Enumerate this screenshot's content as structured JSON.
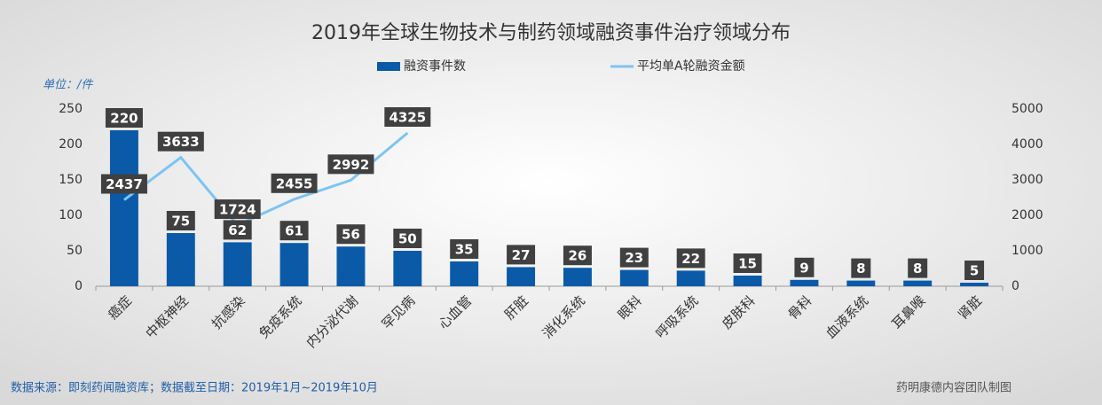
{
  "chart_data": {
    "type": "bar",
    "title": "2019年全球生物技术与制药领域融资事件治疗领域分布",
    "y_unit": "单位：/件",
    "categories": [
      "癌症",
      "中枢神经",
      "抗感染",
      "免疫系统",
      "内分泌代谢",
      "罕见病",
      "心血管",
      "肝脏",
      "消化系统",
      "眼科",
      "呼吸系统",
      "皮肤科",
      "骨科",
      "血液系统",
      "耳鼻喉",
      "肾脏"
    ],
    "series": [
      {
        "name": "融资事件数",
        "type": "bar",
        "color": "#0a5aa8",
        "values": [
          220,
          75,
          62,
          61,
          56,
          50,
          35,
          27,
          26,
          23,
          22,
          15,
          9,
          8,
          8,
          5
        ]
      },
      {
        "name": "平均单A轮融资金额",
        "type": "line",
        "axis": "y2",
        "color": "#7cc4f4",
        "values": [
          2437,
          3633,
          1724,
          2455,
          2992,
          4325,
          null,
          null,
          null,
          null,
          null,
          null,
          null,
          null,
          null,
          null
        ]
      }
    ],
    "ylim": [
      0,
      250
    ],
    "yticks": [
      0,
      50,
      100,
      150,
      200,
      250
    ],
    "y2lim": [
      0,
      5000
    ],
    "y2ticks": [
      0,
      1000,
      2000,
      3000,
      4000,
      5000
    ],
    "grid": false,
    "legend": "top",
    "source": "数据来源：即刻药闻融资库；数据截至日期：2019年1月~2019年10月",
    "credit": "药明康德内容团队制图"
  }
}
